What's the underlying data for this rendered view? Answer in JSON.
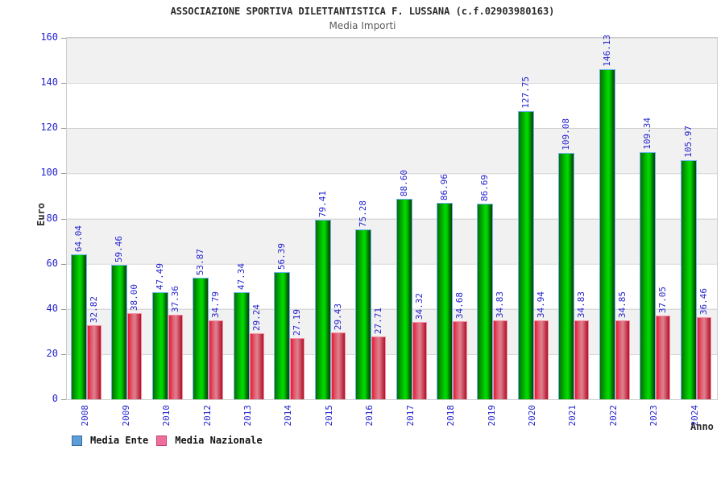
{
  "header": {
    "title": "ASSOCIAZIONE SPORTIVA DILETTANTISTICA F. LUSSANA (c.f.02903980163)",
    "subtitle": "Media Importi"
  },
  "axes": {
    "y_title": "Euro",
    "x_title": "Anno",
    "y_ticks": [
      0,
      20,
      40,
      60,
      80,
      100,
      120,
      140,
      160
    ]
  },
  "legend": {
    "items": [
      {
        "label": "Media Ente",
        "swatch_color": "#5b9fd6",
        "swatch_border": "#36699e"
      },
      {
        "label": "Media Nazionale",
        "swatch_color": "#ee6f9d",
        "swatch_border": "#c24070"
      }
    ]
  },
  "colors": {
    "bar_green": "#00cc00",
    "bar_green_border": "#6fb3ec",
    "bar_red": "#dd3350",
    "bar_red_border": "#f78fa7",
    "label_blue": "#2424d0",
    "band_gray": "#f1f1f1"
  },
  "chart_data": {
    "type": "bar",
    "title": "Media Importi",
    "xlabel": "Anno",
    "ylabel": "Euro",
    "ylim": [
      0,
      160
    ],
    "grid": "horizontal-bands",
    "legend_position": "bottom-left",
    "categories": [
      "2008",
      "2009",
      "2010",
      "2012",
      "2013",
      "2014",
      "2015",
      "2016",
      "2017",
      "2018",
      "2019",
      "2020",
      "2021",
      "2022",
      "2023",
      "2024"
    ],
    "series": [
      {
        "name": "Media Ente",
        "values": [
          64.04,
          59.46,
          47.49,
          53.87,
          47.34,
          56.39,
          79.41,
          75.28,
          88.6,
          86.96,
          86.69,
          127.75,
          109.08,
          146.13,
          109.34,
          105.97
        ],
        "value_labels": [
          "64.04",
          "59.46",
          "47.49",
          "53.87",
          "47.34",
          "56.39",
          "79.41",
          "75.28",
          "88.60",
          "86.96",
          "86.69",
          "127.75",
          "109.08",
          "146.13",
          "109.34",
          "105.97"
        ]
      },
      {
        "name": "Media Nazionale",
        "values": [
          32.82,
          38.0,
          37.36,
          34.79,
          29.24,
          27.19,
          29.43,
          27.71,
          34.32,
          34.68,
          34.83,
          34.94,
          34.83,
          34.85,
          37.05,
          36.46
        ],
        "value_labels": [
          "32.82",
          "38.00",
          "37.36",
          "34.79",
          "29.24",
          "27.19",
          "29.43",
          "27.71",
          "34.32",
          "34.68",
          "34.83",
          "34.94",
          "34.83",
          "34.85",
          "37.05",
          "36.46"
        ]
      }
    ]
  }
}
